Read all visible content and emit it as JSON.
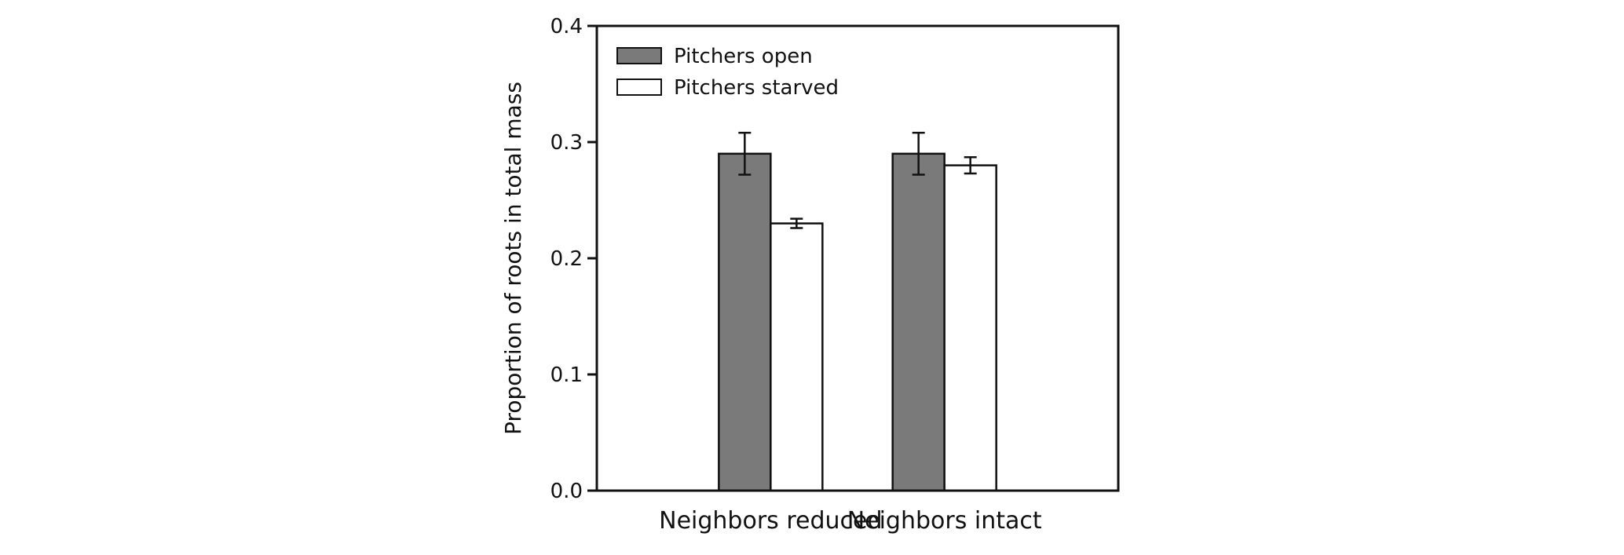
{
  "chart_data": {
    "type": "bar",
    "categories": [
      "Neighbors reduced",
      "Neighbors intact"
    ],
    "series": [
      {
        "name": "Pitchers open",
        "values": [
          0.29,
          0.29
        ],
        "errors": [
          0.018,
          0.018
        ],
        "color": "#7a7a7a"
      },
      {
        "name": "Pitchers starved",
        "values": [
          0.23,
          0.28
        ],
        "errors": [
          0.004,
          0.007
        ],
        "color": "#ffffff"
      }
    ],
    "ylabel": "Proportion of roots in total mass",
    "xlabel": "",
    "ylim": [
      0.0,
      0.4
    ],
    "yticks": [
      "0.0",
      "0.1",
      "0.2",
      "0.3",
      "0.4"
    ],
    "legend_position": "top-left",
    "grid": false
  }
}
